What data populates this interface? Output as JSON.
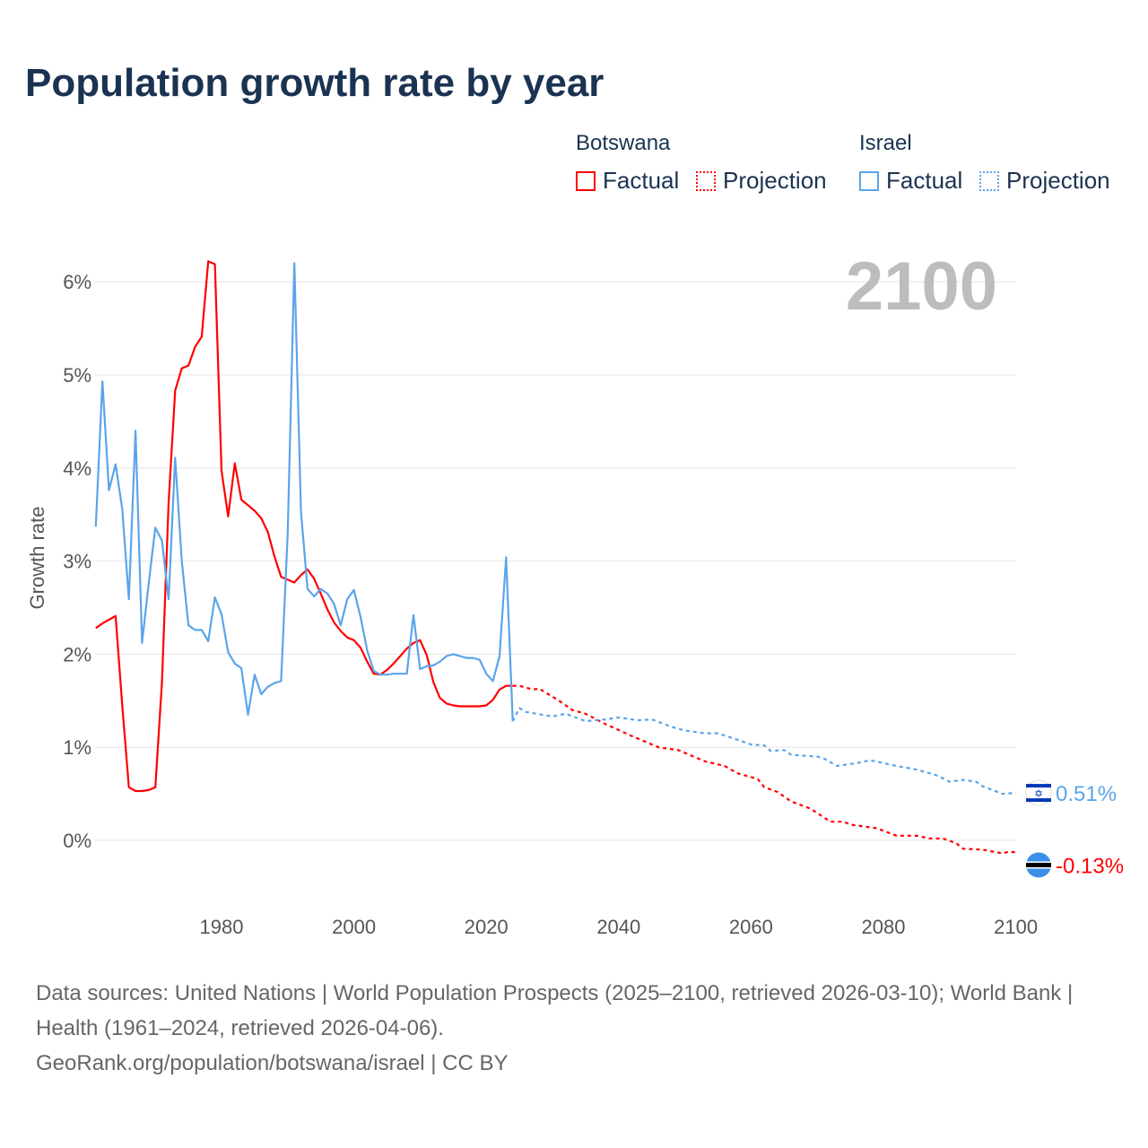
{
  "title": "Population growth rate by year",
  "legend": {
    "botswana": {
      "country": "Botswana",
      "factual": "Factual",
      "projection": "Projection",
      "color": "#ff0000"
    },
    "israel": {
      "country": "Israel",
      "factual": "Factual",
      "projection": "Projection",
      "color": "#5ba4ea"
    }
  },
  "current_year": "2100",
  "footer": {
    "sources": "Data sources: United Nations | World Population Prospects (2025–2100, retrieved 2026-03-10); World Bank | Health (1961–2024, retrieved 2026-04-06).",
    "credit": "GeoRank.org/population/botswana/israel | CC BY"
  },
  "chart_data": {
    "type": "line",
    "title": "Population growth rate by year",
    "xlabel": "",
    "ylabel": "Growth rate",
    "xlim": [
      1961,
      2100
    ],
    "ylim": [
      -0.7,
      6.4
    ],
    "x_ticks": [
      1980,
      2000,
      2020,
      2040,
      2060,
      2080,
      2100
    ],
    "y_ticks": [
      0,
      1,
      2,
      3,
      4,
      5,
      6
    ],
    "y_tick_labels": [
      "0%",
      "1%",
      "2%",
      "3%",
      "4%",
      "5%",
      "6%"
    ],
    "grid": true,
    "legend_position": "top-right",
    "end_labels": {
      "israel": "0.51%",
      "botswana": "-0.13%"
    },
    "series": [
      {
        "name": "Botswana Factual",
        "color": "#ff0000",
        "dashed": false,
        "points": [
          [
            1961,
            2.28
          ],
          [
            1962,
            2.33
          ],
          [
            1963,
            2.37
          ],
          [
            1964,
            2.41
          ],
          [
            1965,
            1.45
          ],
          [
            1966,
            0.57
          ],
          [
            1967,
            0.53
          ],
          [
            1968,
            0.53
          ],
          [
            1969,
            0.54
          ],
          [
            1970,
            0.57
          ],
          [
            1971,
            1.7
          ],
          [
            1972,
            3.63
          ],
          [
            1973,
            4.83
          ],
          [
            1974,
            5.07
          ],
          [
            1975,
            5.1
          ],
          [
            1976,
            5.3
          ],
          [
            1977,
            5.41
          ],
          [
            1978,
            6.22
          ],
          [
            1979,
            6.19
          ],
          [
            1980,
            3.97
          ],
          [
            1981,
            3.48
          ],
          [
            1982,
            4.05
          ],
          [
            1983,
            3.66
          ],
          [
            1984,
            3.6
          ],
          [
            1985,
            3.54
          ],
          [
            1986,
            3.46
          ],
          [
            1987,
            3.31
          ],
          [
            1988,
            3.05
          ],
          [
            1989,
            2.83
          ],
          [
            1990,
            2.8
          ],
          [
            1991,
            2.77
          ],
          [
            1992,
            2.85
          ],
          [
            1993,
            2.91
          ],
          [
            1994,
            2.81
          ],
          [
            1995,
            2.65
          ],
          [
            1996,
            2.48
          ],
          [
            1997,
            2.34
          ],
          [
            1998,
            2.25
          ],
          [
            1999,
            2.18
          ],
          [
            2000,
            2.15
          ],
          [
            2001,
            2.07
          ],
          [
            2002,
            1.92
          ],
          [
            2003,
            1.79
          ],
          [
            2004,
            1.78
          ],
          [
            2005,
            1.83
          ],
          [
            2006,
            1.9
          ],
          [
            2007,
            1.98
          ],
          [
            2008,
            2.06
          ],
          [
            2009,
            2.12
          ],
          [
            2010,
            2.15
          ],
          [
            2011,
            1.99
          ],
          [
            2012,
            1.7
          ],
          [
            2013,
            1.53
          ],
          [
            2014,
            1.47
          ],
          [
            2015,
            1.45
          ],
          [
            2016,
            1.44
          ],
          [
            2017,
            1.44
          ],
          [
            2018,
            1.44
          ],
          [
            2019,
            1.44
          ],
          [
            2020,
            1.45
          ],
          [
            2021,
            1.51
          ],
          [
            2022,
            1.62
          ],
          [
            2023,
            1.66
          ],
          [
            2024,
            1.66
          ]
        ]
      },
      {
        "name": "Botswana Projection",
        "color": "#ff0000",
        "dashed": true,
        "points": [
          [
            2024,
            1.66
          ],
          [
            2025,
            1.66
          ],
          [
            2027,
            1.62
          ],
          [
            2028,
            1.63
          ],
          [
            2031,
            1.5
          ],
          [
            2033,
            1.4
          ],
          [
            2035,
            1.36
          ],
          [
            2038,
            1.25
          ],
          [
            2042,
            1.12
          ],
          [
            2046,
            1.0
          ],
          [
            2049,
            0.97
          ],
          [
            2053,
            0.85
          ],
          [
            2056,
            0.8
          ],
          [
            2058,
            0.72
          ],
          [
            2061,
            0.66
          ],
          [
            2062,
            0.57
          ],
          [
            2064,
            0.52
          ],
          [
            2066,
            0.42
          ],
          [
            2069,
            0.34
          ],
          [
            2072,
            0.2
          ],
          [
            2074,
            0.2
          ],
          [
            2075,
            0.17
          ],
          [
            2079,
            0.13
          ],
          [
            2082,
            0.05
          ],
          [
            2085,
            0.05
          ],
          [
            2087,
            0.02
          ],
          [
            2089,
            0.02
          ],
          [
            2091,
            -0.03
          ],
          [
            2092,
            -0.09
          ],
          [
            2095,
            -0.1
          ],
          [
            2098,
            -0.14
          ],
          [
            2099,
            -0.12
          ],
          [
            2100,
            -0.13
          ]
        ]
      },
      {
        "name": "Israel Factual",
        "color": "#5ba4ea",
        "dashed": false,
        "points": [
          [
            1961,
            3.37
          ],
          [
            1962,
            4.93
          ],
          [
            1963,
            3.76
          ],
          [
            1964,
            4.04
          ],
          [
            1965,
            3.56
          ],
          [
            1966,
            2.59
          ],
          [
            1967,
            4.4
          ],
          [
            1968,
            2.12
          ],
          [
            1969,
            2.76
          ],
          [
            1970,
            3.36
          ],
          [
            1971,
            3.22
          ],
          [
            1972,
            2.59
          ],
          [
            1973,
            4.11
          ],
          [
            1974,
            3.0
          ],
          [
            1975,
            2.31
          ],
          [
            1976,
            2.26
          ],
          [
            1977,
            2.26
          ],
          [
            1978,
            2.14
          ],
          [
            1979,
            2.61
          ],
          [
            1980,
            2.43
          ],
          [
            1981,
            2.02
          ],
          [
            1982,
            1.9
          ],
          [
            1983,
            1.85
          ],
          [
            1984,
            1.35
          ],
          [
            1985,
            1.78
          ],
          [
            1986,
            1.57
          ],
          [
            1987,
            1.65
          ],
          [
            1988,
            1.69
          ],
          [
            1989,
            1.71
          ],
          [
            1990,
            3.3
          ],
          [
            1991,
            6.2
          ],
          [
            1992,
            3.53
          ],
          [
            1993,
            2.7
          ],
          [
            1994,
            2.62
          ],
          [
            1995,
            2.7
          ],
          [
            1996,
            2.65
          ],
          [
            1997,
            2.54
          ],
          [
            1998,
            2.31
          ],
          [
            1999,
            2.59
          ],
          [
            2000,
            2.69
          ],
          [
            2001,
            2.4
          ],
          [
            2002,
            2.04
          ],
          [
            2003,
            1.82
          ],
          [
            2004,
            1.78
          ],
          [
            2005,
            1.78
          ],
          [
            2006,
            1.79
          ],
          [
            2007,
            1.79
          ],
          [
            2008,
            1.79
          ],
          [
            2009,
            2.42
          ],
          [
            2010,
            1.84
          ],
          [
            2011,
            1.87
          ],
          [
            2012,
            1.88
          ],
          [
            2013,
            1.92
          ],
          [
            2014,
            1.98
          ],
          [
            2015,
            2.0
          ],
          [
            2016,
            1.98
          ],
          [
            2017,
            1.96
          ],
          [
            2018,
            1.96
          ],
          [
            2019,
            1.94
          ],
          [
            2020,
            1.79
          ],
          [
            2021,
            1.71
          ],
          [
            2022,
            1.98
          ],
          [
            2023,
            3.04
          ],
          [
            2024,
            1.28
          ]
        ]
      },
      {
        "name": "Israel Projection",
        "color": "#5ba4ea",
        "dashed": true,
        "points": [
          [
            2024,
            1.28
          ],
          [
            2025,
            1.42
          ],
          [
            2026,
            1.38
          ],
          [
            2030,
            1.33
          ],
          [
            2032,
            1.36
          ],
          [
            2035,
            1.28
          ],
          [
            2038,
            1.3
          ],
          [
            2040,
            1.32
          ],
          [
            2043,
            1.29
          ],
          [
            2045,
            1.3
          ],
          [
            2048,
            1.22
          ],
          [
            2050,
            1.18
          ],
          [
            2053,
            1.15
          ],
          [
            2055,
            1.15
          ],
          [
            2058,
            1.08
          ],
          [
            2060,
            1.03
          ],
          [
            2062,
            1.02
          ],
          [
            2063,
            0.96
          ],
          [
            2065,
            0.97
          ],
          [
            2066,
            0.92
          ],
          [
            2070,
            0.9
          ],
          [
            2071,
            0.88
          ],
          [
            2073,
            0.8
          ],
          [
            2076,
            0.83
          ],
          [
            2078,
            0.86
          ],
          [
            2080,
            0.83
          ],
          [
            2082,
            0.8
          ],
          [
            2085,
            0.76
          ],
          [
            2088,
            0.7
          ],
          [
            2090,
            0.63
          ],
          [
            2092,
            0.65
          ],
          [
            2094,
            0.63
          ],
          [
            2095,
            0.58
          ],
          [
            2098,
            0.5
          ],
          [
            2100,
            0.51
          ]
        ]
      }
    ]
  }
}
